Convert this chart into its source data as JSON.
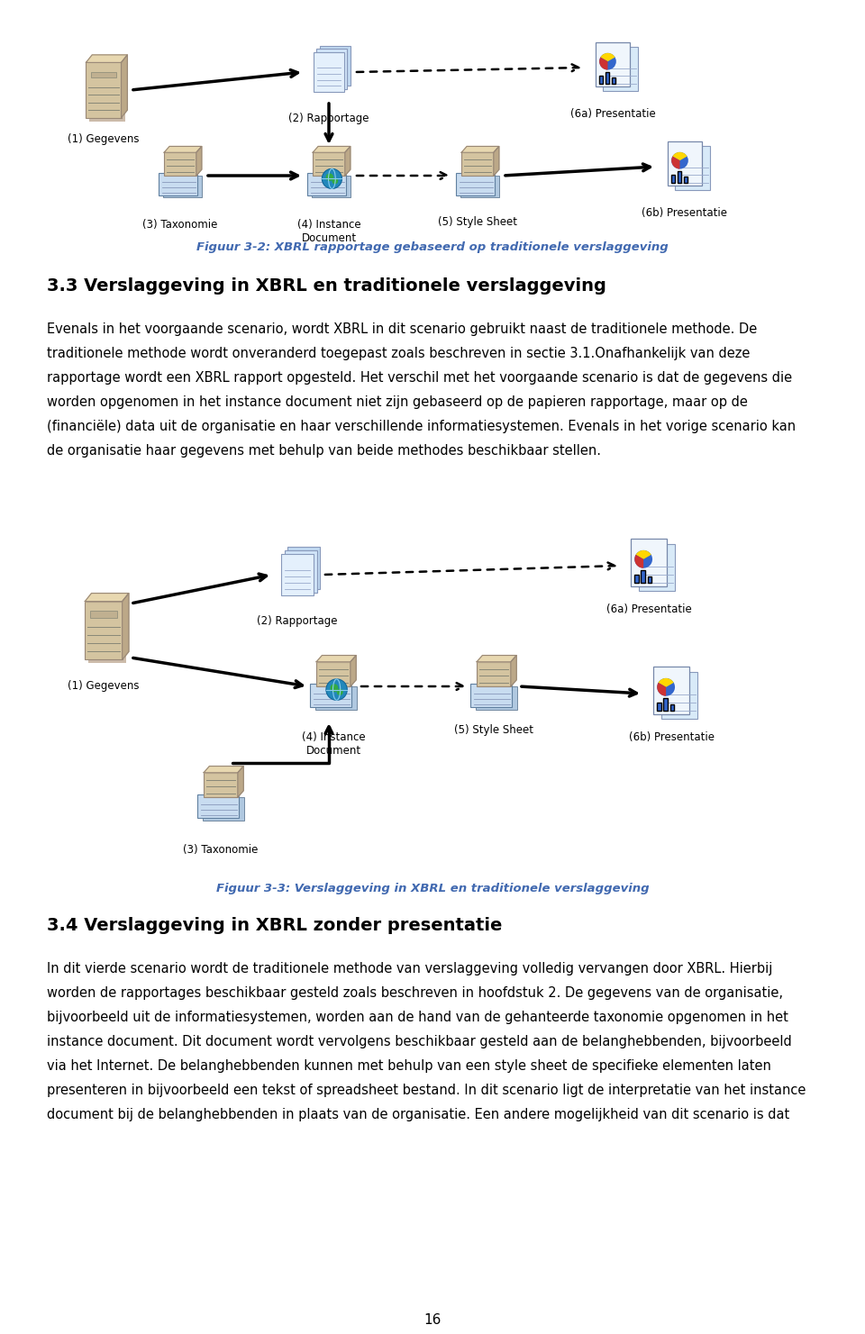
{
  "background_color": "#ffffff",
  "figure_caption_color": "#4169B0",
  "heading3_text": "3.3 Verslaggeving in XBRL en traditionele verslaggeving",
  "heading4_text": "3.4 Verslaggeving in XBRL zonder presentatie",
  "fig2_caption": "Figuur 3-2: XBRL rapportage gebaseerd op traditionele verslaggeving",
  "fig3_caption": "Figuur 3-3: Verslaggeving in XBRL en traditionele verslaggeving",
  "para1_lines": [
    "Evenals in het voorgaande scenario, wordt XBRL in dit scenario gebruikt naast de traditionele methode. De",
    "traditionele methode wordt onveranderd toegepast zoals beschreven in sectie 3.1.Onafhankelijk van deze",
    "rapportage wordt een XBRL rapport opgesteld. Het verschil met het voorgaande scenario is dat de gegevens die",
    "worden opgenomen in het instance document niet zijn gebaseerd op de papieren rapportage, maar op de",
    "(financiële) data uit de organisatie en haar verschillende informatiesystemen. Evenals in het vorige scenario kan",
    "de organisatie haar gegevens met behulp van beide methodes beschikbaar stellen."
  ],
  "para2_lines": [
    "In dit vierde scenario wordt de traditionele methode van verslaggeving volledig vervangen door XBRL. Hierbij",
    "worden de rapportages beschikbaar gesteld zoals beschreven in hoofdstuk 2. De gegevens van de organisatie,",
    "bijvoorbeeld uit de informatiesystemen, worden aan de hand van de gehanteerde taxonomie opgenomen in het",
    "instance document. Dit document wordt vervolgens beschikbaar gesteld aan de belanghebbenden, bijvoorbeeld",
    "via het Internet. De belanghebbenden kunnen met behulp van een style sheet de specifieke elementen laten",
    "presenteren in bijvoorbeeld een tekst of spreadsheet bestand. In dit scenario ligt de interpretatie van het instance",
    "document bij de belanghebbenden in plaats van de organisatie. Een andere mogelijkheid van dit scenario is dat"
  ],
  "page_number": "16",
  "lbl_fontsize": 8.5,
  "body_fontsize": 10.5,
  "heading3_fontsize": 14,
  "heading4_fontsize": 14,
  "caption_fontsize": 9.5
}
